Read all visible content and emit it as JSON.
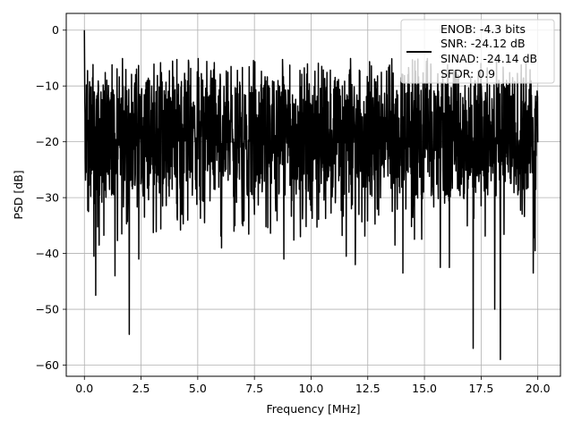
{
  "chart_data": {
    "type": "line",
    "title": "",
    "xlabel": "Frequency [MHz]",
    "ylabel": "PSD [dB]",
    "xlim": [
      -0.8,
      21.0
    ],
    "ylim": [
      -62,
      3
    ],
    "xticks": [
      0.0,
      2.5,
      5.0,
      7.5,
      10.0,
      12.5,
      15.0,
      17.5,
      20.0
    ],
    "xtick_labels": [
      "0.0",
      "2.5",
      "5.0",
      "7.5",
      "10.0",
      "12.5",
      "15.0",
      "17.5",
      "20.0"
    ],
    "yticks": [
      0,
      -10,
      -20,
      -30,
      -40,
      -50,
      -60
    ],
    "ytick_labels": [
      "0",
      "−10",
      "−20",
      "−30",
      "−40",
      "−50",
      "−60"
    ],
    "grid": true,
    "legend_position": "top-right",
    "legend_entries": [
      "ENOB: -4.3 bits",
      "SNR: -24.12 dB",
      "SINAD: -24.14 dB",
      "SFDR: 0.9"
    ],
    "series": [
      {
        "color": "#000000",
        "x_range": [
          0,
          20
        ],
        "noise_band_db": [
          -30,
          -8
        ],
        "mean_db": -19,
        "peak": {
          "x": 0.0,
          "y": 0.0
        },
        "dips": [
          {
            "x": 0.08,
            "y": -25.5
          },
          {
            "x": 0.18,
            "y": -32.5
          },
          {
            "x": 0.42,
            "y": -40.5
          },
          {
            "x": 0.5,
            "y": -47.5
          },
          {
            "x": 0.65,
            "y": -38.5
          },
          {
            "x": 1.35,
            "y": -44.0
          },
          {
            "x": 1.65,
            "y": -36.5
          },
          {
            "x": 1.98,
            "y": -54.5
          },
          {
            "x": 2.4,
            "y": -41.0
          },
          {
            "x": 2.65,
            "y": -33.5
          },
          {
            "x": 3.45,
            "y": -31.5
          },
          {
            "x": 4.3,
            "y": -33.0
          },
          {
            "x": 5.3,
            "y": -34.5
          },
          {
            "x": 6.05,
            "y": -39.0
          },
          {
            "x": 7.5,
            "y": -33.0
          },
          {
            "x": 8.8,
            "y": -41.0
          },
          {
            "x": 11.55,
            "y": -40.5
          },
          {
            "x": 11.95,
            "y": -42.0
          },
          {
            "x": 13.7,
            "y": -38.5
          },
          {
            "x": 14.05,
            "y": -43.5
          },
          {
            "x": 15.7,
            "y": -42.5
          },
          {
            "x": 16.1,
            "y": -42.5
          },
          {
            "x": 17.15,
            "y": -57.0
          },
          {
            "x": 18.1,
            "y": -50.0
          },
          {
            "x": 18.35,
            "y": -59.0
          },
          {
            "x": 19.8,
            "y": -43.0
          },
          {
            "x": 19.8,
            "y": -43.5
          },
          {
            "x": 19.88,
            "y": -39.5
          }
        ]
      }
    ]
  }
}
